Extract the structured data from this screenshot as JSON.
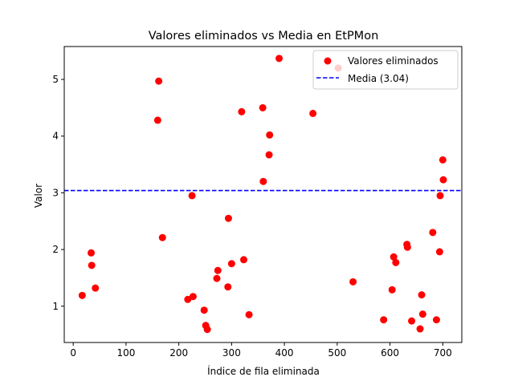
{
  "chart_data": {
    "type": "scatter",
    "title": "Valores eliminados vs Media en EtPMon",
    "xlabel": "Índice de fila eliminada",
    "ylabel": "Valor",
    "xlim": [
      -17,
      736
    ],
    "ylim": [
      0.36,
      5.58
    ],
    "xticks": [
      0,
      100,
      200,
      300,
      400,
      500,
      600,
      700
    ],
    "yticks": [
      1,
      2,
      3,
      4,
      5
    ],
    "grid": false,
    "legend_position": "upper right",
    "series": [
      {
        "name": "Valores eliminados",
        "kind": "scatter",
        "color": "#ff0000",
        "points": [
          [
            17,
            1.19
          ],
          [
            34,
            1.94
          ],
          [
            35,
            1.72
          ],
          [
            42,
            1.32
          ],
          [
            160,
            4.28
          ],
          [
            162,
            4.97
          ],
          [
            169,
            2.21
          ],
          [
            217,
            1.12
          ],
          [
            225,
            2.95
          ],
          [
            227,
            1.17
          ],
          [
            248,
            0.93
          ],
          [
            251,
            0.66
          ],
          [
            254,
            0.59
          ],
          [
            272,
            1.49
          ],
          [
            274,
            1.63
          ],
          [
            293,
            1.34
          ],
          [
            294,
            2.55
          ],
          [
            300,
            1.75
          ],
          [
            319,
            4.43
          ],
          [
            323,
            1.82
          ],
          [
            333,
            0.85
          ],
          [
            359,
            4.5
          ],
          [
            360,
            3.2
          ],
          [
            371,
            3.67
          ],
          [
            372,
            4.02
          ],
          [
            390,
            5.37
          ],
          [
            454,
            4.4
          ],
          [
            502,
            5.2
          ],
          [
            530,
            1.43
          ],
          [
            588,
            0.76
          ],
          [
            604,
            1.29
          ],
          [
            607,
            1.87
          ],
          [
            611,
            1.77
          ],
          [
            632,
            2.09
          ],
          [
            633,
            2.04
          ],
          [
            641,
            0.74
          ],
          [
            657,
            0.6
          ],
          [
            660,
            1.2
          ],
          [
            662,
            0.86
          ],
          [
            681,
            2.3
          ],
          [
            688,
            0.76
          ],
          [
            694,
            1.96
          ],
          [
            695,
            2.95
          ],
          [
            700,
            3.58
          ],
          [
            701,
            3.23
          ]
        ]
      },
      {
        "name": "Media (3.04)",
        "kind": "hline",
        "value": 3.04,
        "color": "#0000ff",
        "style": "dashed"
      }
    ]
  }
}
